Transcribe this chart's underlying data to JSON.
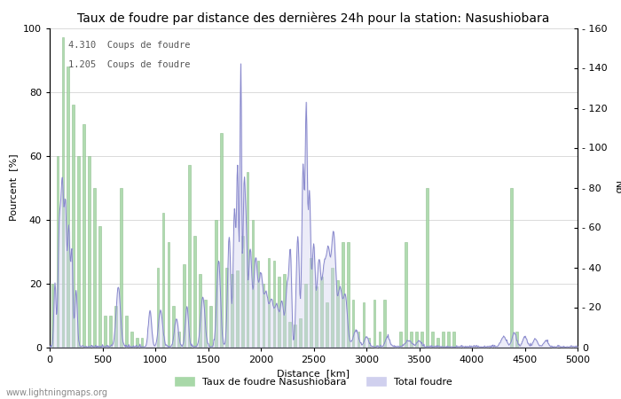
{
  "title": "Taux de foudre par distance des dernières 24h pour la station: Nasushiobara",
  "xlabel": "Distance  [km]",
  "ylabel_left": "Pourcent  [%]",
  "ylabel_right": "Nb",
  "annotation1": "4.310  Coups de foudre",
  "annotation2": "1.205  Coups de foudre",
  "xlim": [
    0,
    5000
  ],
  "ylim_left": [
    0,
    100
  ],
  "ylim_right": [
    0,
    160
  ],
  "legend_label1": "Taux de foudre Nasushiobara",
  "legend_label2": "Total foudre",
  "bar_color": "#a8d8a8",
  "bar_edge_color": "#88bb88",
  "line_color": "#8888cc",
  "fill_color": "#d0d0ee",
  "background_color": "#ffffff",
  "grid_color": "#cccccc",
  "watermark": "www.lightningmaps.org",
  "title_fontsize": 10,
  "label_fontsize": 8,
  "tick_fontsize": 8,
  "bar_heights": [
    20,
    60,
    97,
    88,
    76,
    60,
    70,
    60,
    50,
    38,
    10,
    10,
    13,
    50,
    10,
    5,
    3,
    3,
    0,
    0,
    25,
    42,
    33,
    13,
    5,
    26,
    57,
    35,
    23,
    15,
    13,
    40,
    67,
    25,
    23,
    24,
    35,
    55,
    40,
    27,
    20,
    28,
    27,
    22,
    23,
    8,
    7,
    9,
    20,
    28,
    19,
    22,
    14,
    25,
    21,
    33,
    33,
    15,
    5,
    14,
    3,
    15,
    5,
    15,
    0,
    0,
    5,
    33,
    5,
    5,
    5,
    50,
    5,
    3,
    5,
    5,
    5,
    0,
    0,
    0,
    0,
    0,
    0,
    0,
    0,
    0,
    0,
    50,
    5,
    0,
    0,
    0,
    0,
    0,
    0,
    0,
    0,
    0,
    0,
    0
  ],
  "line_peaks": [
    [
      50,
      10,
      32
    ],
    [
      90,
      12,
      52
    ],
    [
      120,
      15,
      82
    ],
    [
      150,
      10,
      60
    ],
    [
      180,
      12,
      60
    ],
    [
      210,
      10,
      46
    ],
    [
      250,
      12,
      28
    ],
    [
      650,
      20,
      30
    ],
    [
      950,
      15,
      18
    ],
    [
      1050,
      20,
      18
    ],
    [
      1200,
      18,
      14
    ],
    [
      1300,
      15,
      20
    ],
    [
      1450,
      20,
      25
    ],
    [
      1600,
      18,
      43
    ],
    [
      1700,
      15,
      55
    ],
    [
      1750,
      12,
      68
    ],
    [
      1780,
      10,
      88
    ],
    [
      1810,
      8,
      140
    ],
    [
      1840,
      10,
      68
    ],
    [
      1860,
      12,
      55
    ],
    [
      1900,
      15,
      48
    ],
    [
      1950,
      18,
      43
    ],
    [
      2000,
      20,
      35
    ],
    [
      2050,
      20,
      25
    ],
    [
      2100,
      20,
      22
    ],
    [
      2150,
      20,
      20
    ],
    [
      2200,
      18,
      22
    ],
    [
      2250,
      15,
      30
    ],
    [
      2280,
      12,
      45
    ],
    [
      2350,
      15,
      55
    ],
    [
      2400,
      12,
      90
    ],
    [
      2430,
      10,
      115
    ],
    [
      2460,
      12,
      75
    ],
    [
      2500,
      15,
      50
    ],
    [
      2550,
      18,
      42
    ],
    [
      2600,
      20,
      38
    ],
    [
      2640,
      18,
      42
    ],
    [
      2680,
      18,
      36
    ],
    [
      2700,
      18,
      30
    ],
    [
      2750,
      20,
      28
    ],
    [
      2800,
      20,
      25
    ],
    [
      2900,
      25,
      8
    ],
    [
      3000,
      20,
      5
    ],
    [
      3200,
      20,
      5
    ],
    [
      3400,
      30,
      3
    ],
    [
      3500,
      20,
      3
    ],
    [
      4300,
      25,
      5
    ],
    [
      4400,
      20,
      7
    ],
    [
      4500,
      20,
      5
    ],
    [
      4600,
      20,
      4
    ],
    [
      4700,
      20,
      3
    ]
  ]
}
